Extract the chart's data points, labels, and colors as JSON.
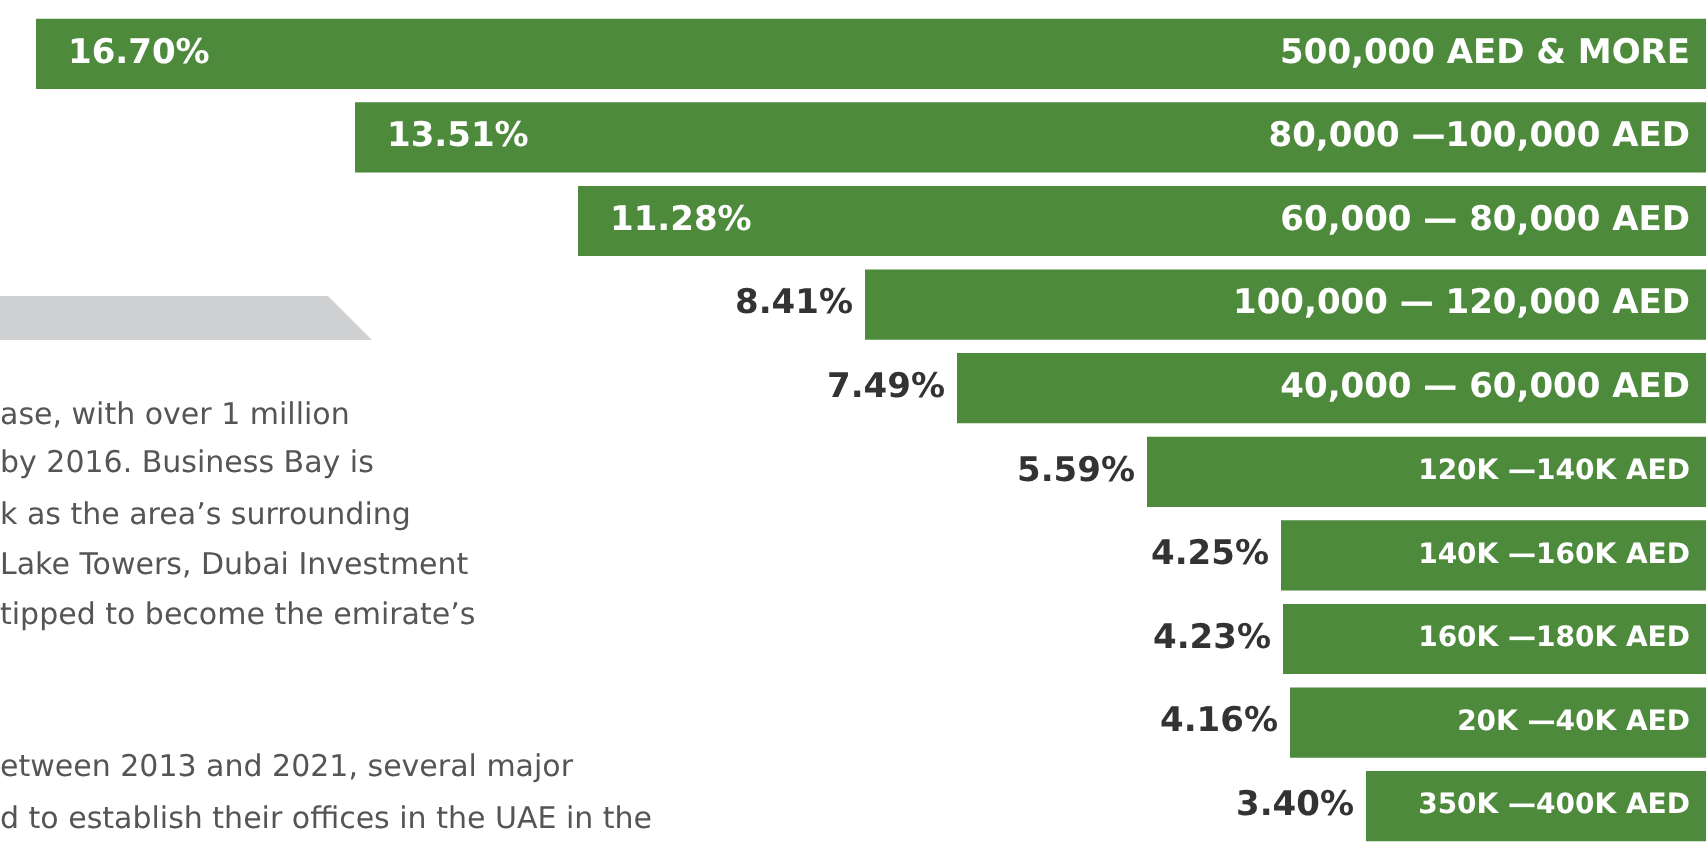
{
  "chart_data": {
    "type": "bar",
    "orientation": "horizontal",
    "categories": [
      "500,000 AED & MORE",
      "80,000 —100,000 AED",
      "60,000 — 80,000 AED",
      "100,000 — 120,000 AED",
      "40,000 — 60,000 AED",
      "120K —140K AED",
      "140K —160K AED",
      "160K —180K AED",
      "20K —40K AED",
      "350K —400K AED"
    ],
    "values": [
      16.7,
      13.51,
      11.28,
      8.41,
      7.49,
      5.59,
      4.25,
      4.23,
      4.16,
      3.4
    ],
    "value_labels": [
      "16.70%",
      "13.51%",
      "11.28%",
      "8.41%",
      "7.49%",
      "5.59%",
      "4.25%",
      "4.23%",
      "4.16%",
      "3.40%"
    ],
    "color": "#4e8a3c",
    "xlim": [
      17.06,
      0
    ],
    "tick_labels": false,
    "annotations": [
      "ase, with over 1 million",
      "by 2016. Business Bay is",
      "k as the area’s surrounding",
      "Lake Towers, Dubai Investment",
      "tipped to become the emirate’s",
      "etween 2013 and 2021, several major",
      "d to establish their offices in the UAE in the"
    ]
  }
}
